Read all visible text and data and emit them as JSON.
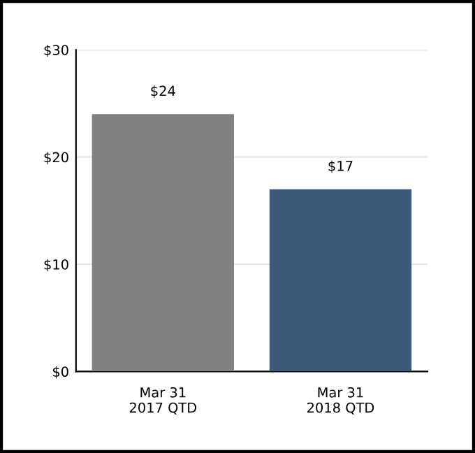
{
  "chart_data": {
    "type": "bar",
    "categories": [
      "Mar 31\n2017 QTD",
      "Mar 31\n2018 QTD"
    ],
    "values": [
      24,
      17
    ],
    "colors": [
      "#808080",
      "#3d5a7a"
    ],
    "value_labels": [
      "$24",
      "$17"
    ],
    "ylim": [
      0,
      30
    ],
    "yticks": [
      {
        "value": 0,
        "label": "$0"
      },
      {
        "value": 10,
        "label": "$10"
      },
      {
        "value": 20,
        "label": "$20"
      },
      {
        "value": 30,
        "label": "$30"
      }
    ],
    "grid": "y"
  }
}
